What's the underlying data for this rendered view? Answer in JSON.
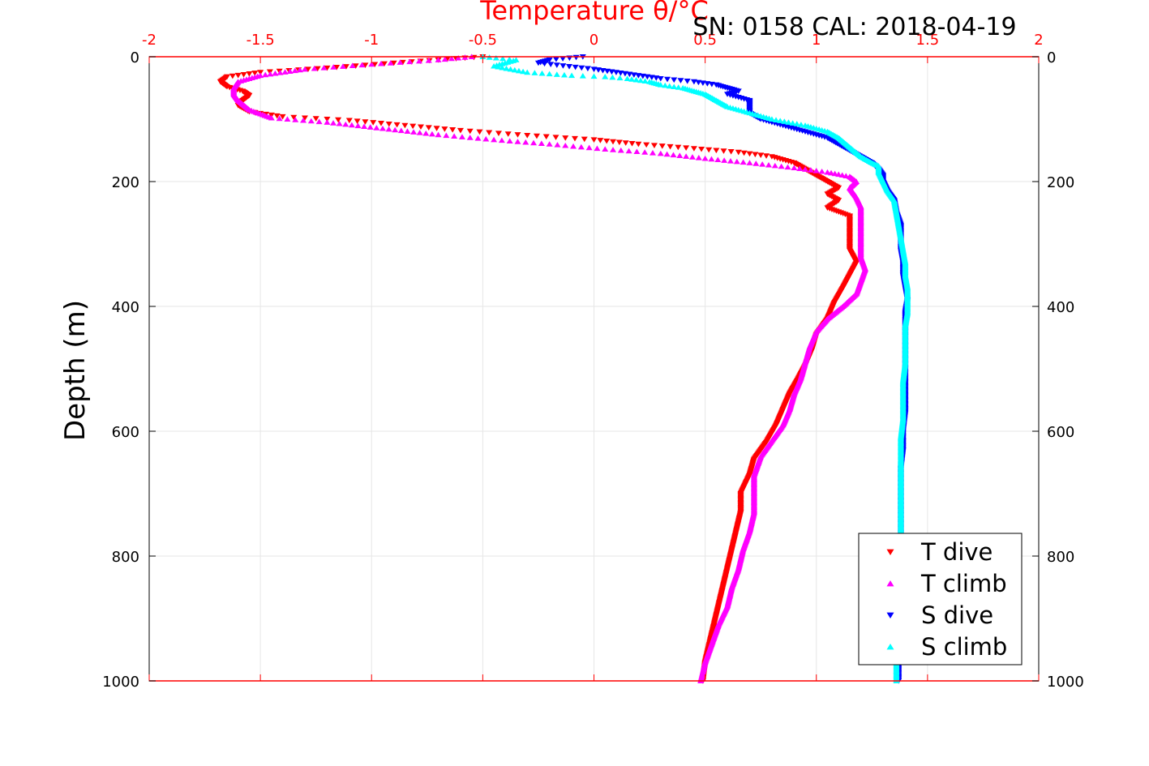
{
  "chart_data": {
    "type": "scatter",
    "title": "SN: 0158  CAL: 2018-04-19",
    "xlabel": "Temperature θ/°C",
    "ylabel": "Depth (m)",
    "xlim": [
      -2,
      2
    ],
    "ylim": [
      1000,
      0
    ],
    "y_reversed": true,
    "x_axis_position": "top",
    "x_axis_color": "#ff0000",
    "x_ticks": [
      "-2",
      "-1.5",
      "-1",
      "-0.5",
      "0",
      "0.5",
      "1",
      "1.5",
      "2"
    ],
    "y_ticks": [
      "0",
      "200",
      "400",
      "600",
      "800",
      "1000"
    ],
    "grid": true,
    "legend_position": "bottom-right",
    "legend": [
      "T dive",
      "T climb",
      "S dive",
      "S climb"
    ],
    "series": [
      {
        "name": "T dive",
        "color": "#ff0000",
        "marker": "triangle-down",
        "points": [
          [
            -0.5,
            0
          ],
          [
            -0.9,
            10
          ],
          [
            -1.2,
            18
          ],
          [
            -1.5,
            25
          ],
          [
            -1.65,
            32
          ],
          [
            -1.68,
            40
          ],
          [
            -1.65,
            48
          ],
          [
            -1.58,
            55
          ],
          [
            -1.55,
            62
          ],
          [
            -1.58,
            70
          ],
          [
            -1.6,
            78
          ],
          [
            -1.55,
            88
          ],
          [
            -1.4,
            96
          ],
          [
            -1.1,
            102
          ],
          [
            -0.85,
            110
          ],
          [
            -0.6,
            118
          ],
          [
            -0.3,
            126
          ],
          [
            0.0,
            133
          ],
          [
            0.2,
            140
          ],
          [
            0.45,
            147
          ],
          [
            0.65,
            153
          ],
          [
            0.8,
            160
          ],
          [
            0.9,
            170
          ],
          [
            0.95,
            180
          ],
          [
            1.0,
            190
          ],
          [
            1.05,
            200
          ],
          [
            1.1,
            210
          ],
          [
            1.05,
            220
          ],
          [
            1.1,
            230
          ],
          [
            1.05,
            242
          ],
          [
            1.15,
            255
          ],
          [
            1.15,
            270
          ],
          [
            1.15,
            290
          ],
          [
            1.15,
            310
          ],
          [
            1.18,
            330
          ],
          [
            1.15,
            350
          ],
          [
            1.12,
            370
          ],
          [
            1.08,
            395
          ],
          [
            1.05,
            420
          ],
          [
            1.0,
            445
          ],
          [
            0.98,
            470
          ],
          [
            0.95,
            495
          ],
          [
            0.92,
            515
          ],
          [
            0.88,
            540
          ],
          [
            0.85,
            565
          ],
          [
            0.82,
            590
          ],
          [
            0.78,
            615
          ],
          [
            0.72,
            645
          ],
          [
            0.7,
            670
          ],
          [
            0.66,
            700
          ],
          [
            0.66,
            730
          ],
          [
            0.64,
            760
          ],
          [
            0.62,
            790
          ],
          [
            0.6,
            820
          ],
          [
            0.58,
            850
          ],
          [
            0.56,
            880
          ],
          [
            0.54,
            910
          ],
          [
            0.52,
            940
          ],
          [
            0.5,
            970
          ],
          [
            0.49,
            1000
          ]
        ]
      },
      {
        "name": "T climb",
        "color": "#ff00ff",
        "marker": "triangle-up",
        "points": [
          [
            -0.55,
            0
          ],
          [
            -0.7,
            5
          ],
          [
            -1.0,
            12
          ],
          [
            -1.3,
            20
          ],
          [
            -1.5,
            30
          ],
          [
            -1.6,
            40
          ],
          [
            -1.62,
            50
          ],
          [
            -1.62,
            60
          ],
          [
            -1.6,
            70
          ],
          [
            -1.55,
            85
          ],
          [
            -1.45,
            98
          ],
          [
            -1.2,
            105
          ],
          [
            -0.95,
            115
          ],
          [
            -0.7,
            125
          ],
          [
            -0.45,
            133
          ],
          [
            -0.2,
            140
          ],
          [
            0.05,
            148
          ],
          [
            0.3,
            155
          ],
          [
            0.5,
            163
          ],
          [
            0.7,
            170
          ],
          [
            0.9,
            178
          ],
          [
            1.05,
            185
          ],
          [
            1.15,
            192
          ],
          [
            1.18,
            200
          ],
          [
            1.15,
            210
          ],
          [
            1.18,
            225
          ],
          [
            1.2,
            240
          ],
          [
            1.2,
            260
          ],
          [
            1.2,
            280
          ],
          [
            1.2,
            300
          ],
          [
            1.2,
            320
          ],
          [
            1.22,
            340
          ],
          [
            1.2,
            360
          ],
          [
            1.18,
            380
          ],
          [
            1.12,
            400
          ],
          [
            1.05,
            420
          ],
          [
            1.0,
            440
          ],
          [
            0.97,
            465
          ],
          [
            0.95,
            490
          ],
          [
            0.93,
            515
          ],
          [
            0.9,
            540
          ],
          [
            0.88,
            565
          ],
          [
            0.85,
            590
          ],
          [
            0.8,
            615
          ],
          [
            0.75,
            640
          ],
          [
            0.72,
            670
          ],
          [
            0.72,
            700
          ],
          [
            0.72,
            730
          ],
          [
            0.7,
            760
          ],
          [
            0.67,
            790
          ],
          [
            0.65,
            820
          ],
          [
            0.62,
            850
          ],
          [
            0.6,
            880
          ],
          [
            0.56,
            910
          ],
          [
            0.53,
            940
          ],
          [
            0.5,
            970
          ],
          [
            0.48,
            1000
          ]
        ]
      },
      {
        "name": "S dive",
        "color": "#0000ff",
        "marker": "triangle-down",
        "points": [
          [
            -0.05,
            0
          ],
          [
            -0.2,
            5
          ],
          [
            -0.25,
            10
          ],
          [
            0.0,
            20
          ],
          [
            0.1,
            25
          ],
          [
            0.2,
            30
          ],
          [
            0.3,
            35
          ],
          [
            0.45,
            40
          ],
          [
            0.55,
            45
          ],
          [
            0.6,
            50
          ],
          [
            0.65,
            55
          ],
          [
            0.6,
            60
          ],
          [
            0.7,
            70
          ],
          [
            0.7,
            80
          ],
          [
            0.7,
            90
          ],
          [
            0.75,
            100
          ],
          [
            0.85,
            110
          ],
          [
            0.95,
            120
          ],
          [
            1.05,
            130
          ],
          [
            1.1,
            140
          ],
          [
            1.15,
            150
          ],
          [
            1.2,
            160
          ],
          [
            1.25,
            170
          ],
          [
            1.28,
            180
          ],
          [
            1.3,
            190
          ],
          [
            1.3,
            200
          ],
          [
            1.32,
            215
          ],
          [
            1.35,
            230
          ],
          [
            1.36,
            250
          ],
          [
            1.38,
            270
          ],
          [
            1.38,
            290
          ],
          [
            1.38,
            310
          ],
          [
            1.39,
            330
          ],
          [
            1.39,
            350
          ],
          [
            1.4,
            370
          ],
          [
            1.41,
            390
          ],
          [
            1.4,
            410
          ],
          [
            1.4,
            430
          ],
          [
            1.4,
            450
          ],
          [
            1.4,
            480
          ],
          [
            1.4,
            510
          ],
          [
            1.4,
            540
          ],
          [
            1.4,
            570
          ],
          [
            1.39,
            600
          ],
          [
            1.39,
            630
          ],
          [
            1.38,
            660
          ],
          [
            1.38,
            690
          ],
          [
            1.38,
            720
          ],
          [
            1.38,
            750
          ],
          [
            1.38,
            780
          ],
          [
            1.37,
            810
          ],
          [
            1.37,
            840
          ],
          [
            1.37,
            870
          ],
          [
            1.37,
            900
          ],
          [
            1.37,
            930
          ],
          [
            1.37,
            960
          ],
          [
            1.37,
            1000
          ]
        ]
      },
      {
        "name": "S climb",
        "color": "#00ffff",
        "marker": "triangle-up",
        "points": [
          [
            -0.5,
            0
          ],
          [
            -0.35,
            5
          ],
          [
            -0.45,
            15
          ],
          [
            -0.3,
            25
          ],
          [
            -0.1,
            30
          ],
          [
            0.05,
            32
          ],
          [
            0.15,
            35
          ],
          [
            0.25,
            40
          ],
          [
            0.3,
            45
          ],
          [
            0.4,
            50
          ],
          [
            0.45,
            55
          ],
          [
            0.5,
            60
          ],
          [
            0.55,
            70
          ],
          [
            0.6,
            80
          ],
          [
            0.7,
            90
          ],
          [
            0.8,
            100
          ],
          [
            0.95,
            110
          ],
          [
            1.05,
            120
          ],
          [
            1.1,
            130
          ],
          [
            1.15,
            145
          ],
          [
            1.2,
            160
          ],
          [
            1.25,
            170
          ],
          [
            1.28,
            175
          ],
          [
            1.28,
            185
          ],
          [
            1.3,
            200
          ],
          [
            1.32,
            215
          ],
          [
            1.35,
            230
          ],
          [
            1.36,
            250
          ],
          [
            1.37,
            270
          ],
          [
            1.38,
            290
          ],
          [
            1.39,
            310
          ],
          [
            1.4,
            330
          ],
          [
            1.4,
            350
          ],
          [
            1.41,
            370
          ],
          [
            1.41,
            390
          ],
          [
            1.41,
            410
          ],
          [
            1.4,
            430
          ],
          [
            1.4,
            460
          ],
          [
            1.4,
            490
          ],
          [
            1.39,
            520
          ],
          [
            1.39,
            550
          ],
          [
            1.39,
            580
          ],
          [
            1.38,
            610
          ],
          [
            1.38,
            640
          ],
          [
            1.38,
            670
          ],
          [
            1.38,
            700
          ],
          [
            1.38,
            730
          ],
          [
            1.38,
            760
          ],
          [
            1.38,
            790
          ],
          [
            1.37,
            820
          ],
          [
            1.37,
            850
          ],
          [
            1.37,
            880
          ],
          [
            1.37,
            910
          ],
          [
            1.37,
            940
          ],
          [
            1.36,
            970
          ],
          [
            1.36,
            1000
          ]
        ]
      }
    ]
  }
}
